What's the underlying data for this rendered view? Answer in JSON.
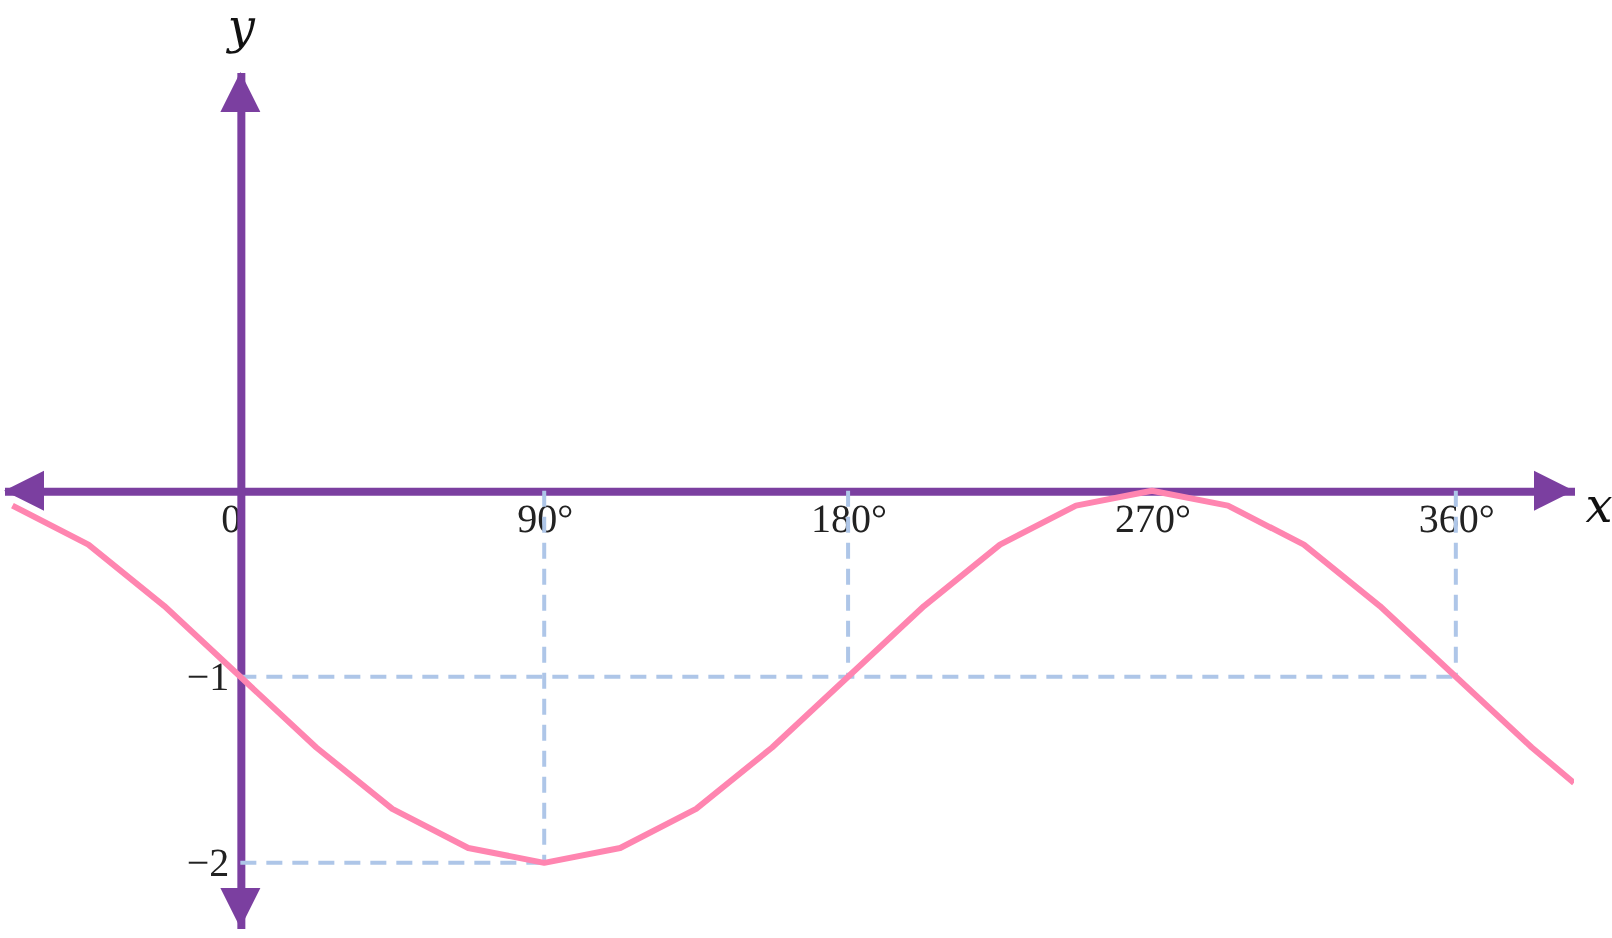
{
  "chart_data": {
    "type": "line",
    "xlabel": "x",
    "ylabel": "y",
    "x": [
      -67.5,
      -45,
      -22.5,
      0,
      22.5,
      45,
      67.5,
      90,
      112.5,
      135,
      157.5,
      180,
      202.5,
      225,
      247.5,
      270,
      292.5,
      315,
      337.5,
      360,
      382.5,
      395
    ],
    "series": [
      {
        "color": "#ff85b0",
        "values": [
          -0.08,
          -0.29,
          -0.62,
          -1,
          -1.38,
          -1.71,
          -1.92,
          -2,
          -1.92,
          -1.71,
          -1.38,
          -1,
          -0.62,
          -0.29,
          -0.08,
          0,
          -0.08,
          -0.29,
          -0.62,
          -1,
          -1.38,
          -1.57
        ]
      }
    ],
    "xlim": [
      -70,
      395
    ],
    "ylim": [
      -2.35,
      2.25
    ],
    "xticks": [
      0,
      {
        "value": 90,
        "label": "90°"
      },
      {
        "value": 180,
        "label": "180°"
      },
      {
        "value": 270,
        "label": "270°"
      },
      {
        "value": 360,
        "label": "360°"
      }
    ],
    "yticks": [
      {
        "value": -1,
        "label": "−1"
      },
      {
        "value": -2,
        "label": "−2"
      }
    ],
    "ref_lines": [
      {
        "axis": "x",
        "value": 90,
        "color": "#aec6e8",
        "line_style": "dashed"
      },
      {
        "axis": "x",
        "value": 180,
        "color": "#aec6e8",
        "line_style": "dashed"
      },
      {
        "axis": "x",
        "value": 360,
        "color": "#aec6e8",
        "line_style": "dashed"
      },
      {
        "axis": "y",
        "value": -1,
        "color": "#aec6e8",
        "line_style": "dashed"
      },
      {
        "axis": "y",
        "value": -2,
        "color": "#aec6e8",
        "line_style": "dashed"
      }
    ],
    "line_style": "solid"
  }
}
